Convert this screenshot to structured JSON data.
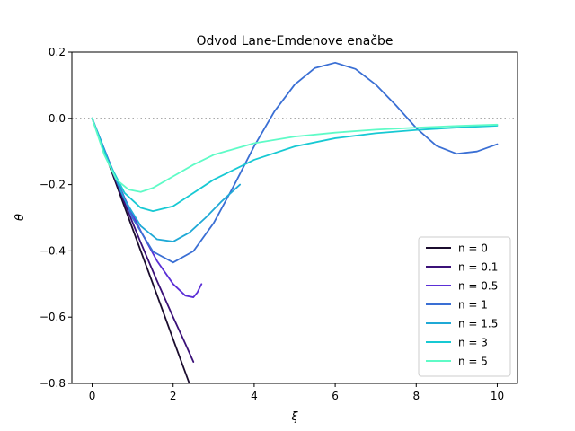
{
  "chart_data": {
    "type": "line",
    "title": "Odvod Lane-Emdenove enačbe",
    "xlabel": "ξ",
    "ylabel": "θ",
    "xlim": [
      -0.5,
      10.5
    ],
    "ylim": [
      -0.8,
      0.2
    ],
    "xticks": [
      0,
      2,
      4,
      6,
      8,
      10
    ],
    "yticks": [
      -0.8,
      -0.6,
      -0.4,
      -0.2,
      0.0,
      0.2
    ],
    "xtick_labels": [
      "0",
      "2",
      "4",
      "6",
      "8",
      "10"
    ],
    "ytick_labels": [
      "−0.8",
      "−0.6",
      "−0.4",
      "−0.2",
      "0.0",
      "0.2"
    ],
    "grid": false,
    "reference_line": {
      "y": 0.0,
      "style": "dotted",
      "color": "#aaaaaa"
    },
    "legend_position": "lower-right",
    "series": [
      {
        "name": "n = 0",
        "color": "#1b0d2e",
        "x": [
          0,
          0.4,
          0.8,
          1.2,
          1.6,
          2.0,
          2.4
        ],
        "y": [
          0,
          -0.133,
          -0.267,
          -0.4,
          -0.533,
          -0.667,
          -0.8
        ]
      },
      {
        "name": "n = 0.1",
        "color": "#3b1178",
        "x": [
          0,
          0.4,
          0.8,
          1.2,
          1.6,
          2.0,
          2.3,
          2.5
        ],
        "y": [
          0,
          -0.13,
          -0.255,
          -0.375,
          -0.49,
          -0.6,
          -0.68,
          -0.735
        ]
      },
      {
        "name": "n = 0.5",
        "color": "#5b2fd6",
        "x": [
          0,
          0.4,
          0.8,
          1.2,
          1.6,
          2.0,
          2.3,
          2.5,
          2.6,
          2.7
        ],
        "y": [
          0,
          -0.125,
          -0.24,
          -0.34,
          -0.43,
          -0.5,
          -0.535,
          -0.54,
          -0.525,
          -0.5
        ]
      },
      {
        "name": "n = 1",
        "color": "#3a6fd4",
        "x": [
          0,
          0.5,
          1.0,
          1.5,
          2.0,
          2.5,
          3.0,
          3.5,
          4.0,
          4.5,
          5.0,
          5.5,
          6.0,
          6.5,
          7.0,
          7.5,
          8.0,
          8.5,
          9.0,
          9.5,
          10.0
        ],
        "y": [
          0,
          -0.155,
          -0.301,
          -0.402,
          -0.435,
          -0.401,
          -0.316,
          -0.203,
          -0.084,
          0.021,
          0.102,
          0.152,
          0.168,
          0.149,
          0.102,
          0.039,
          -0.029,
          -0.083,
          -0.107,
          -0.1,
          -0.078
        ]
      },
      {
        "name": "n = 1.5",
        "color": "#1fa9d6",
        "x": [
          0,
          0.4,
          0.8,
          1.2,
          1.6,
          2.0,
          2.4,
          2.8,
          3.2,
          3.65
        ],
        "y": [
          0,
          -0.13,
          -0.245,
          -0.325,
          -0.365,
          -0.372,
          -0.345,
          -0.3,
          -0.25,
          -0.2
        ]
      },
      {
        "name": "n = 3",
        "color": "#17c9d3",
        "x": [
          0,
          0.4,
          0.8,
          1.2,
          1.5,
          2.0,
          2.5,
          3.0,
          4.0,
          5.0,
          6.0,
          7.0,
          8.0,
          9.0,
          10.0
        ],
        "y": [
          0,
          -0.13,
          -0.225,
          -0.27,
          -0.28,
          -0.265,
          -0.225,
          -0.185,
          -0.125,
          -0.085,
          -0.06,
          -0.045,
          -0.035,
          -0.028,
          -0.022
        ]
      },
      {
        "name": "n = 5",
        "color": "#5ffbc7",
        "x": [
          0,
          0.3,
          0.6,
          0.9,
          1.2,
          1.5,
          2.0,
          2.5,
          3.0,
          4.0,
          5.0,
          6.0,
          7.0,
          8.0,
          9.0,
          10.0
        ],
        "y": [
          0,
          -0.11,
          -0.185,
          -0.215,
          -0.222,
          -0.21,
          -0.175,
          -0.14,
          -0.11,
          -0.075,
          -0.055,
          -0.043,
          -0.034,
          -0.028,
          -0.023,
          -0.019
        ]
      }
    ]
  }
}
